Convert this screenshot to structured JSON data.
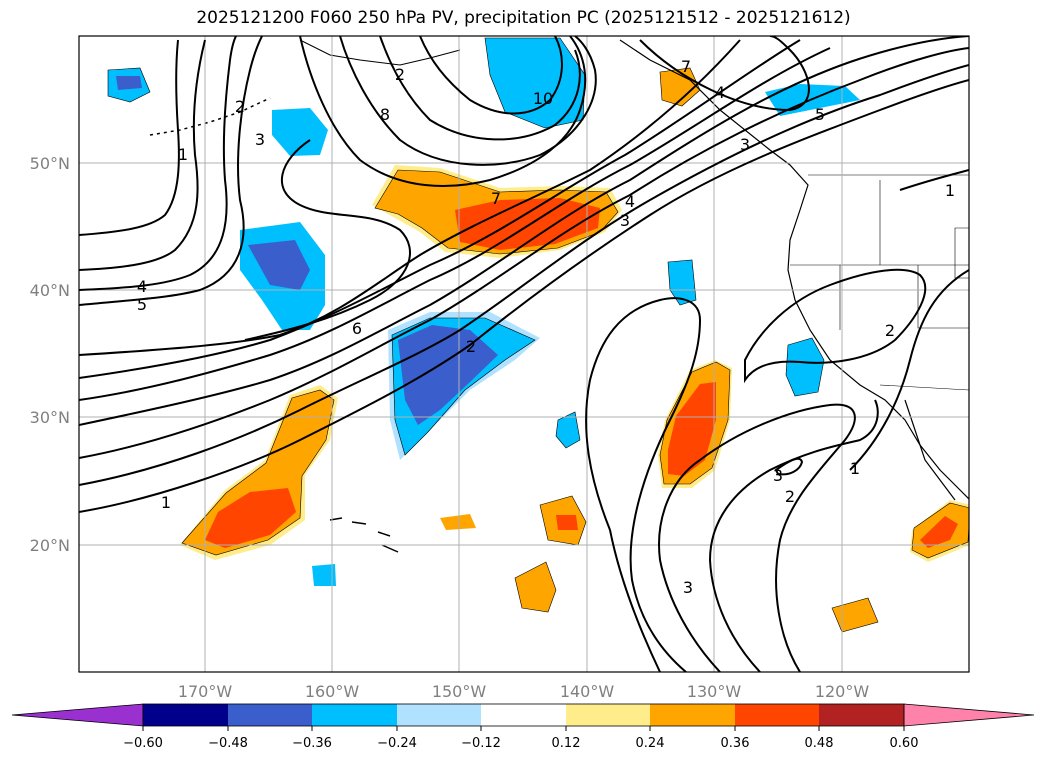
{
  "title": "2025121200 F060 250 hPa PV, precipitation PC (2025121512 - 2025121612)",
  "map": {
    "lon_labels": [
      "170°W",
      "160°W",
      "150°W",
      "140°W",
      "130°W",
      "120°W"
    ],
    "lat_labels": [
      "50°N",
      "40°N",
      "30°N",
      "20°N"
    ],
    "contour_labels": [
      "1",
      "2",
      "3",
      "4",
      "5",
      "6",
      "7",
      "8",
      "10",
      "1",
      "2",
      "3",
      "4",
      "5",
      "2",
      "1",
      "2",
      "3",
      "3",
      "4",
      "7",
      "1",
      "2",
      "3"
    ]
  },
  "colorbar": {
    "colors": [
      "#9b30d0",
      "#00008b",
      "#3a5fcd",
      "#00bfff",
      "#b0e2ff",
      "#ffffff",
      "#ffec8b",
      "#ffa500",
      "#ff4500",
      "#b22222",
      "#ff82ab"
    ],
    "tick_labels": [
      "−0.60",
      "−0.48",
      "−0.36",
      "−0.24",
      "−0.12",
      "0.12",
      "0.24",
      "0.36",
      "0.48",
      "0.60"
    ]
  },
  "colors": {
    "neg_strong": "#3a5fcd",
    "neg_mid": "#00bfff",
    "neg_weak": "#b0e2ff",
    "pos_weak": "#ffec8b",
    "pos_mid": "#ffa500",
    "pos_strong": "#ff4500",
    "grid": "#b0b0b0"
  }
}
